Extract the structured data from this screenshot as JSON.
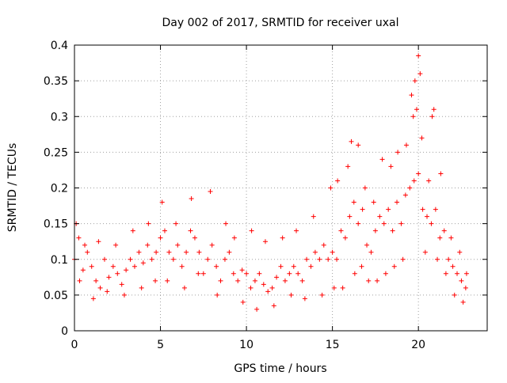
{
  "chart_data": {
    "type": "scatter",
    "title": "Day 002 of 2017, SRMTID for receiver uxal",
    "xlabel": "GPS time / hours",
    "ylabel": "SRMTID / TECUs",
    "xlim": [
      0,
      24
    ],
    "ylim": [
      0,
      0.4
    ],
    "x_ticks": [
      0,
      5,
      10,
      15,
      20
    ],
    "y_ticks": [
      0,
      0.05,
      0.1,
      0.15,
      0.2,
      0.25,
      0.3,
      0.35,
      0.4
    ],
    "x_tick_labels": [
      "0",
      "5",
      "10",
      "15",
      "20"
    ],
    "y_tick_labels": [
      "0",
      "0.05",
      "0.1",
      "0.15",
      "0.2",
      "0.25",
      "0.3",
      "0.35",
      "0.4"
    ],
    "grid": true,
    "marker": "+",
    "series_color": "#ff0000",
    "series": [
      {
        "name": "SRMTID",
        "points": [
          [
            0.0,
            0.1
          ],
          [
            0.25,
            0.13
          ],
          [
            0.5,
            0.085
          ],
          [
            0.75,
            0.11
          ],
          [
            1.0,
            0.09
          ],
          [
            1.25,
            0.07
          ],
          [
            1.5,
            0.06
          ],
          [
            1.75,
            0.1
          ],
          [
            2.0,
            0.075
          ],
          [
            2.25,
            0.09
          ],
          [
            2.5,
            0.08
          ],
          [
            2.75,
            0.065
          ],
          [
            3.0,
            0.085
          ],
          [
            3.25,
            0.1
          ],
          [
            3.5,
            0.09
          ],
          [
            3.75,
            0.11
          ],
          [
            4.0,
            0.095
          ],
          [
            4.25,
            0.12
          ],
          [
            4.5,
            0.1
          ],
          [
            4.75,
            0.11
          ],
          [
            5.0,
            0.13
          ],
          [
            5.25,
            0.14
          ],
          [
            5.5,
            0.11
          ],
          [
            5.75,
            0.1
          ],
          [
            6.0,
            0.12
          ],
          [
            6.25,
            0.09
          ],
          [
            6.5,
            0.11
          ],
          [
            6.75,
            0.14
          ],
          [
            7.0,
            0.13
          ],
          [
            7.25,
            0.11
          ],
          [
            7.5,
            0.08
          ],
          [
            7.75,
            0.1
          ],
          [
            8.0,
            0.12
          ],
          [
            8.25,
            0.09
          ],
          [
            8.5,
            0.07
          ],
          [
            8.75,
            0.1
          ],
          [
            9.0,
            0.11
          ],
          [
            9.25,
            0.08
          ],
          [
            9.5,
            0.07
          ],
          [
            9.75,
            0.085
          ],
          [
            10.0,
            0.08
          ],
          [
            10.25,
            0.06
          ],
          [
            10.5,
            0.07
          ],
          [
            10.75,
            0.08
          ],
          [
            11.0,
            0.065
          ],
          [
            11.25,
            0.055
          ],
          [
            11.5,
            0.06
          ],
          [
            11.75,
            0.075
          ],
          [
            12.0,
            0.09
          ],
          [
            12.25,
            0.07
          ],
          [
            12.5,
            0.08
          ],
          [
            12.75,
            0.09
          ],
          [
            13.0,
            0.08
          ],
          [
            13.25,
            0.07
          ],
          [
            13.5,
            0.1
          ],
          [
            13.75,
            0.09
          ],
          [
            14.0,
            0.11
          ],
          [
            14.25,
            0.1
          ],
          [
            14.5,
            0.12
          ],
          [
            14.75,
            0.1
          ],
          [
            15.0,
            0.11
          ],
          [
            15.25,
            0.1
          ],
          [
            15.5,
            0.14
          ],
          [
            15.75,
            0.13
          ],
          [
            16.0,
            0.16
          ],
          [
            16.25,
            0.18
          ],
          [
            16.5,
            0.15
          ],
          [
            16.75,
            0.17
          ],
          [
            17.0,
            0.12
          ],
          [
            17.25,
            0.11
          ],
          [
            17.5,
            0.14
          ],
          [
            17.75,
            0.16
          ],
          [
            18.0,
            0.15
          ],
          [
            18.25,
            0.17
          ],
          [
            18.5,
            0.14
          ],
          [
            18.75,
            0.18
          ],
          [
            19.0,
            0.15
          ],
          [
            19.25,
            0.19
          ],
          [
            19.5,
            0.2
          ],
          [
            19.75,
            0.21
          ],
          [
            20.0,
            0.22
          ],
          [
            20.25,
            0.17
          ],
          [
            20.5,
            0.16
          ],
          [
            20.75,
            0.15
          ],
          [
            21.0,
            0.17
          ],
          [
            21.25,
            0.13
          ],
          [
            21.5,
            0.14
          ],
          [
            21.75,
            0.1
          ],
          [
            22.0,
            0.09
          ],
          [
            22.25,
            0.08
          ],
          [
            22.5,
            0.07
          ],
          [
            22.75,
            0.06
          ],
          [
            0.1,
            0.15
          ],
          [
            0.3,
            0.07
          ],
          [
            0.6,
            0.12
          ],
          [
            1.1,
            0.045
          ],
          [
            1.4,
            0.125
          ],
          [
            1.9,
            0.055
          ],
          [
            2.4,
            0.12
          ],
          [
            2.9,
            0.05
          ],
          [
            3.4,
            0.14
          ],
          [
            3.9,
            0.06
          ],
          [
            4.3,
            0.15
          ],
          [
            4.7,
            0.07
          ],
          [
            5.1,
            0.18
          ],
          [
            5.4,
            0.07
          ],
          [
            5.9,
            0.15
          ],
          [
            6.4,
            0.06
          ],
          [
            6.8,
            0.185
          ],
          [
            7.2,
            0.08
          ],
          [
            7.9,
            0.195
          ],
          [
            8.3,
            0.05
          ],
          [
            8.8,
            0.15
          ],
          [
            9.3,
            0.13
          ],
          [
            9.8,
            0.04
          ],
          [
            10.3,
            0.14
          ],
          [
            10.6,
            0.03
          ],
          [
            11.1,
            0.125
          ],
          [
            11.6,
            0.035
          ],
          [
            12.1,
            0.13
          ],
          [
            12.6,
            0.05
          ],
          [
            12.9,
            0.14
          ],
          [
            13.4,
            0.045
          ],
          [
            13.9,
            0.16
          ],
          [
            14.4,
            0.05
          ],
          [
            14.9,
            0.2
          ],
          [
            15.1,
            0.06
          ],
          [
            15.3,
            0.21
          ],
          [
            15.6,
            0.06
          ],
          [
            15.9,
            0.23
          ],
          [
            16.1,
            0.265
          ],
          [
            16.3,
            0.08
          ],
          [
            16.5,
            0.26
          ],
          [
            16.7,
            0.09
          ],
          [
            16.9,
            0.2
          ],
          [
            17.1,
            0.07
          ],
          [
            17.4,
            0.18
          ],
          [
            17.6,
            0.07
          ],
          [
            17.9,
            0.24
          ],
          [
            18.1,
            0.08
          ],
          [
            18.4,
            0.23
          ],
          [
            18.6,
            0.09
          ],
          [
            18.8,
            0.25
          ],
          [
            19.1,
            0.1
          ],
          [
            19.3,
            0.26
          ],
          [
            19.6,
            0.33
          ],
          [
            19.7,
            0.3
          ],
          [
            19.8,
            0.35
          ],
          [
            19.9,
            0.31
          ],
          [
            20.0,
            0.385
          ],
          [
            20.1,
            0.36
          ],
          [
            20.2,
            0.27
          ],
          [
            20.4,
            0.11
          ],
          [
            20.6,
            0.21
          ],
          [
            20.8,
            0.3
          ],
          [
            20.9,
            0.31
          ],
          [
            21.1,
            0.1
          ],
          [
            21.3,
            0.22
          ],
          [
            21.6,
            0.08
          ],
          [
            21.9,
            0.13
          ],
          [
            22.1,
            0.05
          ],
          [
            22.4,
            0.11
          ],
          [
            22.6,
            0.04
          ],
          [
            22.8,
            0.08
          ]
        ]
      }
    ]
  }
}
